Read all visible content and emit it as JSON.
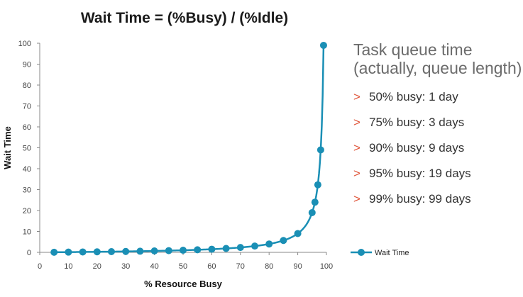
{
  "chart_data": {
    "type": "line",
    "title": "Wait Time = (%Busy) / (%Idle)",
    "xlabel": "% Resource Busy",
    "ylabel": "Wait Time",
    "xlim": [
      0,
      100
    ],
    "ylim": [
      0,
      100
    ],
    "x_ticks": [
      "0",
      "10",
      "20",
      "30",
      "40",
      "50",
      "60",
      "70",
      "80",
      "90",
      "100"
    ],
    "y_ticks": [
      "0",
      "10",
      "20",
      "30",
      "40",
      "50",
      "60",
      "70",
      "80",
      "90",
      "100"
    ],
    "grid": false,
    "legend_position": "bottom-right",
    "series": [
      {
        "name": "Wait Time",
        "color": "#1a8fb5",
        "x": [
          5,
          10,
          15,
          20,
          25,
          30,
          35,
          40,
          45,
          50,
          55,
          60,
          65,
          70,
          75,
          80,
          85,
          90,
          95,
          96,
          97,
          98,
          99
        ],
        "y": [
          0.05,
          0.11,
          0.18,
          0.25,
          0.33,
          0.43,
          0.54,
          0.67,
          0.82,
          1,
          1.22,
          1.5,
          1.86,
          2.33,
          3,
          4,
          5.67,
          9,
          19,
          24,
          32.3,
          49,
          99
        ]
      }
    ]
  },
  "side_panel": {
    "title_line1": "Task queue time",
    "title_line2": "(actually, queue length)",
    "bullet_marker": ">",
    "accent_color": "#e0563b",
    "bullets": [
      "50% busy: 1 day",
      "75% busy: 3 days",
      "90% busy: 9 days",
      "95% busy: 19 days",
      "99% busy: 99 days"
    ]
  }
}
